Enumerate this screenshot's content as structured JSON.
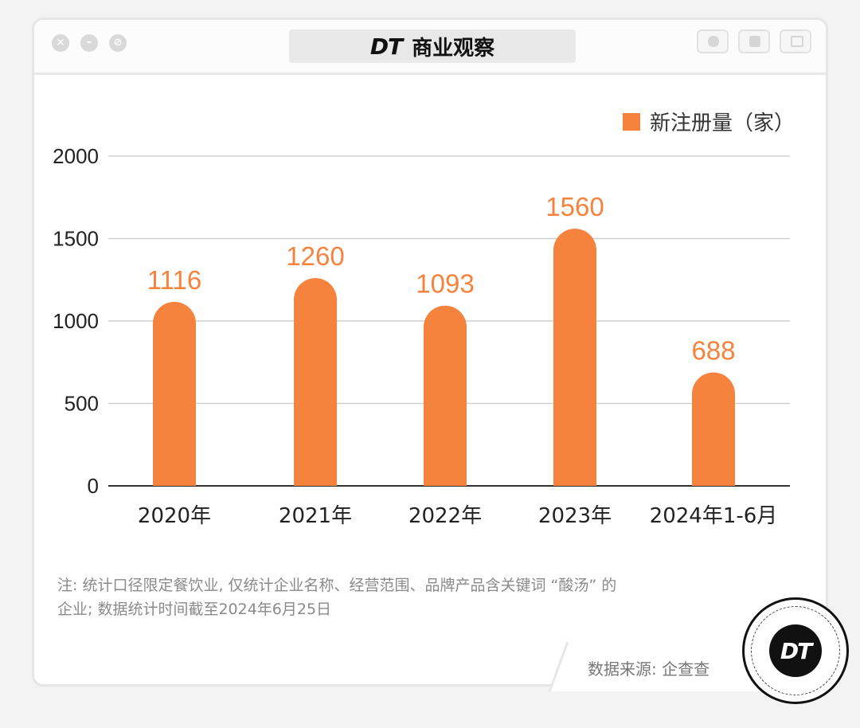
{
  "window": {
    "title_logo": "DT",
    "title_text": "商业观察"
  },
  "chart_data": {
    "type": "bar",
    "categories": [
      "2020年",
      "2021年",
      "2022年",
      "2023年",
      "2024年1-6月"
    ],
    "series": [
      {
        "name": "新注册量（家）",
        "values": [
          1116,
          1260,
          1093,
          1560,
          688
        ]
      }
    ],
    "ylim": [
      0,
      2000
    ],
    "yticks": [
      0,
      500,
      1000,
      1500,
      2000
    ],
    "grid": true,
    "legend": "top-right",
    "bar_color": "#f5823d",
    "data_labels": [
      "1116",
      "1260",
      "1093",
      "1560",
      "688"
    ]
  },
  "note": {
    "line1": "注: 统计口径限定餐饮业, 仅统计企业名称、经营范围、品牌产品含关键词 “酸汤” 的",
    "line2": "企业; 数据统计时间截至2024年6月25日"
  },
  "source": "数据来源: 企查查",
  "badge_text": "DT"
}
